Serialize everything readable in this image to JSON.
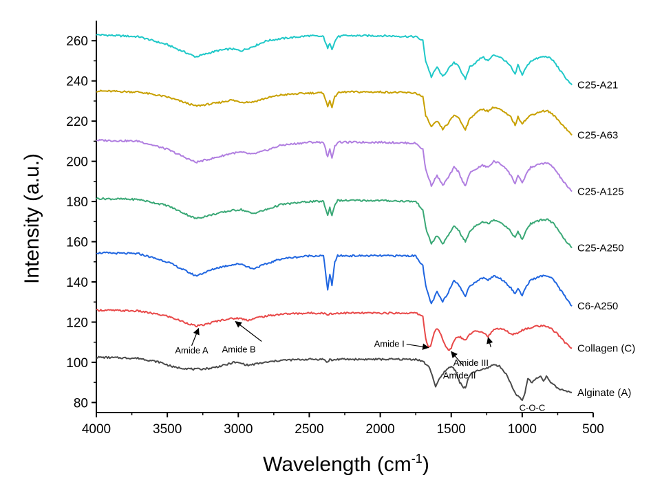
{
  "chart_data": {
    "type": "line",
    "xlabel": "Wavelength (cm",
    "xlabel_sup": "-1",
    "xlabel_close": ")",
    "ylabel": "Intensity (a.u.)",
    "xlim": [
      4000,
      500
    ],
    "ylim": [
      75,
      270
    ],
    "xticks": [
      4000,
      3500,
      3000,
      2500,
      2000,
      1500,
      1000,
      500
    ],
    "yticks": [
      80,
      100,
      120,
      140,
      160,
      180,
      200,
      220,
      240,
      260
    ],
    "series": [
      {
        "name": "C25-A21",
        "color": "#1fc8c8",
        "x": [
          4000,
          3700,
          3500,
          3300,
          3150,
          3050,
          2980,
          2900,
          2800,
          2700,
          2500,
          2400,
          2370,
          2355,
          2340,
          2320,
          2300,
          2250,
          2000,
          1750,
          1700,
          1680,
          1640,
          1600,
          1560,
          1520,
          1480,
          1450,
          1420,
          1400,
          1370,
          1330,
          1280,
          1240,
          1200,
          1160,
          1120,
          1080,
          1050,
          1030,
          1000,
          970,
          940,
          900,
          860,
          820,
          780,
          740,
          700,
          650
        ],
        "values": [
          263,
          262,
          258,
          252,
          255,
          256,
          255,
          257,
          260,
          261,
          262.5,
          262,
          256,
          259,
          256,
          259.5,
          262,
          262.5,
          262.5,
          262,
          260,
          250,
          242,
          247,
          242,
          246,
          249,
          248,
          243,
          241,
          247,
          249,
          252,
          250,
          253,
          252,
          250,
          247,
          243,
          248,
          243,
          247,
          250,
          251,
          252,
          252,
          250,
          246,
          242,
          238
        ]
      },
      {
        "name": "C25-A63",
        "color": "#c8a000",
        "x": [
          4000,
          3700,
          3500,
          3300,
          3150,
          3050,
          2980,
          2900,
          2800,
          2700,
          2500,
          2400,
          2370,
          2355,
          2340,
          2320,
          2300,
          2250,
          2000,
          1750,
          1700,
          1680,
          1640,
          1600,
          1560,
          1520,
          1480,
          1450,
          1420,
          1400,
          1370,
          1330,
          1280,
          1240,
          1200,
          1160,
          1120,
          1080,
          1050,
          1030,
          1000,
          970,
          940,
          900,
          860,
          820,
          780,
          740,
          700,
          650
        ],
        "values": [
          235,
          234.5,
          232,
          227.5,
          229,
          230.5,
          229.5,
          229.5,
          231.5,
          233,
          234,
          234,
          227,
          230.5,
          227,
          232,
          234,
          234.5,
          234.5,
          234,
          232,
          223,
          217,
          220,
          216,
          219,
          223,
          222,
          218,
          216,
          221,
          224,
          226,
          225,
          227,
          226,
          224,
          222,
          218,
          222,
          219,
          221,
          223,
          224,
          225,
          225,
          223,
          220,
          217,
          213
        ]
      },
      {
        "name": "C25-A125",
        "color": "#b07ee0",
        "x": [
          4000,
          3700,
          3500,
          3300,
          3150,
          3050,
          2980,
          2900,
          2800,
          2700,
          2500,
          2400,
          2370,
          2355,
          2340,
          2320,
          2300,
          2250,
          2000,
          1750,
          1700,
          1680,
          1640,
          1600,
          1560,
          1520,
          1480,
          1450,
          1420,
          1400,
          1370,
          1330,
          1280,
          1240,
          1200,
          1160,
          1120,
          1080,
          1050,
          1030,
          1000,
          970,
          940,
          900,
          860,
          820,
          780,
          740,
          700,
          650
        ],
        "values": [
          210.5,
          210,
          206,
          199.5,
          202,
          204,
          204.5,
          203.5,
          205.5,
          208,
          209.5,
          209.5,
          202,
          206,
          202,
          207.5,
          209.5,
          209.5,
          209.5,
          209,
          206,
          196,
          188,
          193,
          188,
          192,
          197,
          195,
          190,
          188,
          194,
          196,
          198,
          197,
          200,
          199,
          197,
          193,
          189,
          193,
          189,
          194,
          197,
          198,
          199,
          199,
          197,
          193,
          189,
          185
        ]
      },
      {
        "name": "C25-A250",
        "color": "#3aa876",
        "x": [
          4000,
          3700,
          3500,
          3300,
          3150,
          3050,
          2980,
          2900,
          2800,
          2700,
          2500,
          2400,
          2370,
          2355,
          2340,
          2320,
          2300,
          2250,
          2000,
          1750,
          1700,
          1680,
          1640,
          1600,
          1560,
          1520,
          1480,
          1450,
          1420,
          1400,
          1370,
          1330,
          1280,
          1240,
          1200,
          1160,
          1120,
          1080,
          1050,
          1030,
          1000,
          970,
          940,
          900,
          860,
          820,
          780,
          740,
          700,
          650
        ],
        "values": [
          181.5,
          181,
          178,
          171.5,
          174,
          175.5,
          176,
          174,
          176,
          178.5,
          180,
          180,
          173,
          177,
          173,
          178.5,
          180.5,
          180.5,
          180.5,
          180,
          176,
          167,
          159,
          163,
          159,
          163,
          168,
          166,
          162,
          160,
          165,
          168,
          170,
          169,
          171,
          170,
          168,
          165,
          162,
          165,
          161,
          166,
          169,
          170,
          171,
          171,
          169,
          165,
          161,
          157
        ]
      },
      {
        "name": "C6-A250",
        "color": "#2066e0",
        "x": [
          4000,
          3700,
          3500,
          3300,
          3150,
          3050,
          2980,
          2900,
          2800,
          2700,
          2500,
          2400,
          2370,
          2355,
          2340,
          2320,
          2300,
          2250,
          2000,
          1750,
          1700,
          1680,
          1640,
          1600,
          1560,
          1520,
          1480,
          1450,
          1420,
          1400,
          1370,
          1330,
          1280,
          1240,
          1200,
          1160,
          1120,
          1080,
          1050,
          1030,
          1000,
          970,
          940,
          900,
          860,
          820,
          780,
          740,
          700,
          650
        ],
        "values": [
          154.5,
          154,
          150,
          143,
          147,
          148.5,
          149,
          146.5,
          149,
          151.5,
          153,
          153,
          136,
          144,
          138,
          150,
          153,
          153,
          153,
          153,
          148,
          138,
          129,
          135,
          130,
          135,
          141,
          139,
          135,
          133,
          138,
          140,
          142,
          141,
          143,
          142,
          140,
          137,
          134,
          137,
          133,
          138,
          141,
          142,
          143,
          143,
          141,
          137,
          133,
          128
        ]
      },
      {
        "name": "Collagen (C)",
        "color": "#e84848",
        "x": [
          4000,
          3700,
          3500,
          3400,
          3300,
          3250,
          3150,
          3080,
          3000,
          2930,
          2850,
          2700,
          2500,
          2400,
          2370,
          2355,
          2340,
          2300,
          2000,
          1750,
          1700,
          1680,
          1660,
          1640,
          1620,
          1600,
          1580,
          1560,
          1540,
          1520,
          1500,
          1480,
          1450,
          1420,
          1400,
          1370,
          1330,
          1280,
          1240,
          1200,
          1160,
          1120,
          1080,
          1050,
          1000,
          950,
          900,
          850,
          800,
          750,
          700,
          650
        ],
        "values": [
          126,
          125.5,
          123,
          120.5,
          118,
          118.5,
          120.5,
          121.5,
          122,
          121,
          122.5,
          124,
          124.5,
          124.5,
          123.5,
          124.5,
          124,
          124.5,
          124.5,
          124.5,
          123,
          112,
          107,
          109,
          115,
          117,
          115,
          111,
          108,
          106,
          107,
          111,
          113,
          112,
          111,
          114,
          116,
          115,
          113,
          116,
          117,
          116,
          114,
          114,
          116,
          117,
          118,
          118,
          117,
          114,
          110,
          107
        ]
      },
      {
        "name": "Alginate (A)",
        "color": "#4a4a4a",
        "x": [
          4000,
          3700,
          3550,
          3450,
          3300,
          3200,
          3100,
          3030,
          2980,
          2930,
          2850,
          2700,
          2500,
          2400,
          2370,
          2355,
          2340,
          2300,
          2000,
          1750,
          1700,
          1650,
          1610,
          1580,
          1540,
          1500,
          1470,
          1440,
          1420,
          1400,
          1380,
          1350,
          1300,
          1250,
          1200,
          1160,
          1120,
          1090,
          1060,
          1030,
          1000,
          980,
          960,
          930,
          900,
          870,
          850,
          830,
          800,
          750,
          700,
          650
        ],
        "values": [
          102.5,
          102,
          100,
          97.5,
          96.5,
          97,
          98.5,
          100,
          99.5,
          98.5,
          99.5,
          101,
          101.5,
          101.5,
          100,
          101.5,
          101,
          101.5,
          101.5,
          101.5,
          100.5,
          97,
          88,
          92,
          96,
          98,
          96,
          90,
          88,
          87,
          92,
          95,
          96,
          97,
          99,
          98,
          95,
          91,
          86,
          83,
          81,
          85,
          92,
          90,
          92,
          93,
          91,
          93,
          90,
          87,
          86,
          85
        ]
      }
    ],
    "annotations": [
      {
        "text": "Amide A",
        "point": [
          3280,
          117.5
        ]
      },
      {
        "text": "Amide B",
        "point": [
          3020,
          121
        ]
      },
      {
        "text": "Amide I",
        "point": [
          1660,
          108
        ]
      },
      {
        "text": "Amide II",
        "point": [
          1500,
          106
        ]
      },
      {
        "text": "Amide III",
        "point": [
          1240,
          113
        ]
      },
      {
        "text": "C-O-C",
        "point": [
          1030,
          81
        ]
      }
    ]
  }
}
